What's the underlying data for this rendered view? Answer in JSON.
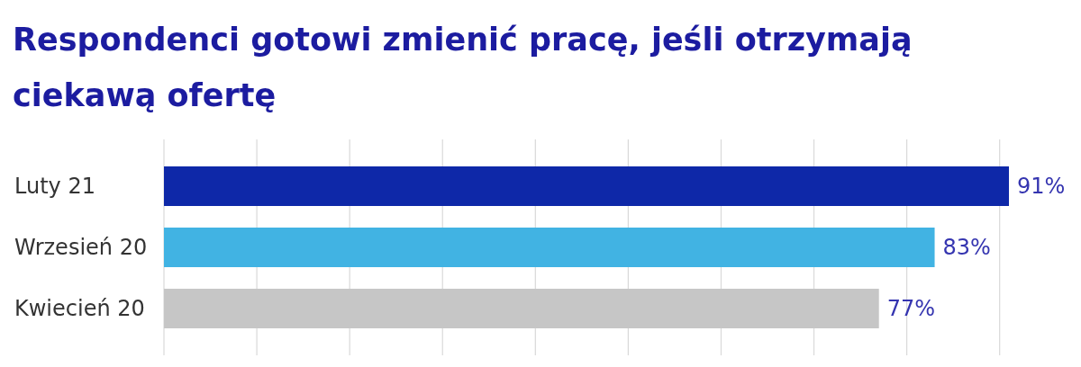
{
  "chart_data": {
    "type": "bar",
    "orientation": "horizontal",
    "title": "Respondenci gotowi zmienić pracę, jeśli otrzymają ciekawą ofertę",
    "categories": [
      "Luty 21",
      "Wrzesień 20",
      "Kwiecień 20"
    ],
    "values": [
      91,
      83,
      77
    ],
    "colors": [
      "#0e28a8",
      "#41b3e3",
      "#c6c6c6"
    ],
    "value_labels": [
      "91%",
      "83%",
      "77%"
    ],
    "xlim": [
      0,
      91
    ],
    "xticks": [
      {
        "value": 0,
        "label": null
      },
      {
        "value": 10,
        "label": null
      },
      {
        "value": 20,
        "label": null
      },
      {
        "value": 30,
        "label": null
      },
      {
        "value": 40,
        "label": null
      },
      {
        "value": 50,
        "label": null
      },
      {
        "value": 60,
        "label": null
      },
      {
        "value": 70,
        "label": null
      },
      {
        "value": 80,
        "label": null
      },
      {
        "value": 90,
        "label": null
      }
    ],
    "grid": "x",
    "tick_labels": "y"
  }
}
